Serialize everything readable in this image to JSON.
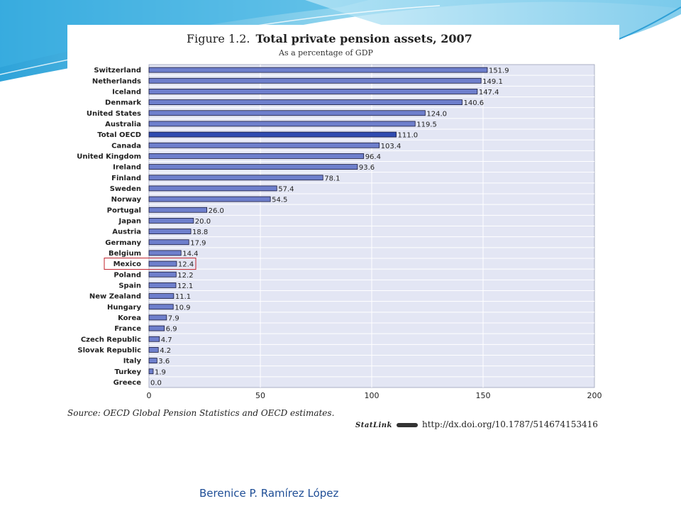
{
  "chart_data": {
    "type": "bar",
    "orientation": "horizontal",
    "figure_label": "Figure 1.2.",
    "title": "Total private pension assets, 2007",
    "subtitle": "As a percentage of GDP",
    "categories": [
      "Switzerland",
      "Netherlands",
      "Iceland",
      "Denmark",
      "United States",
      "Australia",
      "Total OECD",
      "Canada",
      "United Kingdom",
      "Ireland",
      "Finland",
      "Sweden",
      "Norway",
      "Portugal",
      "Japan",
      "Austria",
      "Germany",
      "Belgium",
      "Mexico",
      "Poland",
      "Spain",
      "New Zealand",
      "Hungary",
      "Korea",
      "France",
      "Czech Republic",
      "Slovak Republic",
      "Italy",
      "Turkey",
      "Greece"
    ],
    "values": [
      151.9,
      149.1,
      147.4,
      140.6,
      124.0,
      119.5,
      111.0,
      103.4,
      96.4,
      93.6,
      78.1,
      57.4,
      54.5,
      26.0,
      20.0,
      18.8,
      17.9,
      14.4,
      12.4,
      12.2,
      12.1,
      11.1,
      10.9,
      7.9,
      6.9,
      4.7,
      4.2,
      3.6,
      1.9,
      0.0
    ],
    "value_labels": [
      "151.9",
      "149.1",
      "147.4",
      "140.6",
      "124.0",
      "119.5",
      "111.0",
      "103.4",
      "96.4",
      "93.6",
      "78.1",
      "57.4",
      "54.5",
      "26.0",
      "20.0",
      "18.8",
      "17.9",
      "14.4",
      "12.4",
      "12.2",
      "12.1",
      "11.1",
      "10.9",
      "7.9",
      "6.9",
      "4.7",
      "4.2",
      "3.6",
      "1.9",
      "0.0"
    ],
    "xlim": [
      0,
      200
    ],
    "xticks": [
      0,
      50,
      100,
      150,
      200
    ],
    "grid": true,
    "highlighted_category": "Total OECD",
    "annotated_category": "Mexico",
    "colors": {
      "bar": "#6e7fcc",
      "bar_highlight": "#2f4bb0",
      "bar_edge": "#1a1a3a",
      "plot_bg": "#e3e6f4",
      "annotation_box": "#c0202a"
    }
  },
  "source": "Source:  OECD Global Pension Statistics and OECD estimates.",
  "statlink": {
    "brand": "StatLink",
    "url": "http://dx.doi.org/10.1787/514674153416"
  },
  "footer": {
    "author": "Berenice P. Ramírez López"
  }
}
